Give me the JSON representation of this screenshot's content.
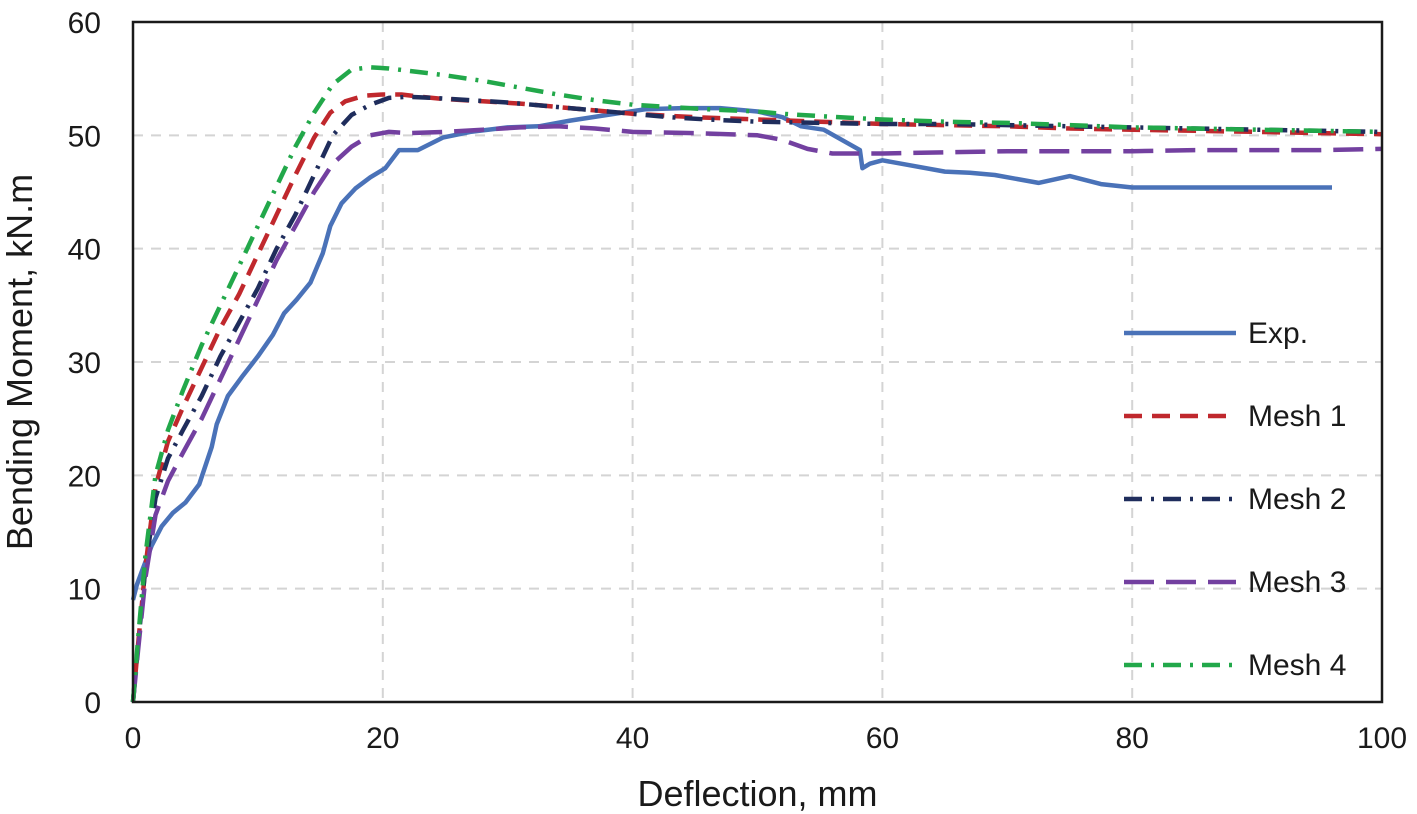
{
  "chart_data": {
    "type": "line",
    "title": "",
    "xlabel": "Deflection, mm",
    "ylabel": "Bending Moment, kN.m",
    "xlim": [
      0,
      100
    ],
    "ylim": [
      0,
      60
    ],
    "xticks": [
      0,
      20,
      40,
      60,
      80,
      100
    ],
    "yticks": [
      0,
      10,
      20,
      30,
      40,
      50,
      60
    ],
    "xtick_labels": [
      "0",
      "20",
      "40",
      "60",
      "80",
      "100"
    ],
    "ytick_labels": [
      "0",
      "10",
      "20",
      "30",
      "40",
      "50",
      "60"
    ],
    "grid": true,
    "legend_position": "right",
    "series": [
      {
        "name": "Exp.",
        "color": "#4a72b8",
        "dash": "solid",
        "x": [
          0,
          0.3,
          0.8,
          1.5,
          2.3,
          3.2,
          4.2,
          5.3,
          6.3,
          6.7,
          7.6,
          8.8,
          10,
          11.2,
          12.1,
          13.1,
          14.2,
          15.2,
          15.8,
          16.7,
          17.8,
          19,
          20.2,
          21.3,
          22.8,
          24.8,
          27,
          30,
          32.5,
          35,
          38,
          41,
          44,
          47,
          50,
          52,
          53.5,
          55.3,
          58.2,
          58.4,
          59,
          60,
          62,
          65,
          67,
          69,
          72.5,
          75,
          77.5,
          80,
          85,
          90,
          96
        ],
        "y": [
          9,
          10.3,
          11.8,
          13.8,
          15.5,
          16.7,
          17.6,
          19.2,
          22.5,
          24.5,
          27,
          28.8,
          30.5,
          32.4,
          34.3,
          35.5,
          37,
          39.6,
          42,
          44,
          45.3,
          46.3,
          47.1,
          48.7,
          48.7,
          49.8,
          50.3,
          50.7,
          50.8,
          51.3,
          51.8,
          52.3,
          52.4,
          52.4,
          52.1,
          51.6,
          50.8,
          50.5,
          48.7,
          47.1,
          47.5,
          47.8,
          47.4,
          46.8,
          46.7,
          46.5,
          45.8,
          46.4,
          45.7,
          45.4,
          45.4,
          45.4,
          45.4
        ]
      },
      {
        "name": "Mesh 1",
        "color": "#c0282d",
        "dash": "dash",
        "x": [
          0,
          0.4,
          1,
          1.8,
          2.8,
          4,
          5.5,
          7,
          8.5,
          10,
          11.5,
          13,
          14.5,
          15.8,
          17,
          18.5,
          20,
          21.5,
          23,
          25,
          28,
          31,
          34,
          37,
          40,
          45,
          50,
          55,
          60,
          65,
          70,
          75,
          80,
          85,
          90,
          95,
          100
        ],
        "y": [
          0,
          5,
          12,
          19,
          23,
          26,
          29.5,
          33,
          36,
          39.5,
          43,
          46.5,
          49.8,
          52,
          53,
          53.5,
          53.6,
          53.6,
          53.4,
          53.2,
          53,
          52.8,
          52.5,
          52.2,
          51.9,
          51.6,
          51.4,
          51.2,
          51,
          50.9,
          50.8,
          50.6,
          50.5,
          50.4,
          50.3,
          50.2,
          50.1
        ]
      },
      {
        "name": "Mesh 2",
        "color": "#1f2d5c",
        "dash": "dashdot",
        "x": [
          0,
          0.4,
          1,
          1.8,
          2.8,
          4,
          5.5,
          7,
          8.5,
          10,
          11.5,
          13,
          14.5,
          16,
          17.5,
          19,
          20.5,
          22,
          24,
          27,
          30,
          33,
          36,
          38,
          40,
          43,
          46,
          50,
          55,
          60,
          65,
          70,
          75,
          80,
          85,
          90,
          95,
          100
        ],
        "y": [
          0,
          5,
          12,
          18,
          21.5,
          24,
          27,
          30.5,
          33.5,
          36.5,
          40,
          43,
          46.5,
          50,
          51.8,
          52.7,
          53.3,
          53.4,
          53.3,
          53.1,
          52.9,
          52.6,
          52.3,
          52.1,
          51.9,
          51.6,
          51.4,
          51.2,
          51.1,
          51,
          51,
          50.9,
          50.8,
          50.7,
          50.6,
          50.5,
          50.4,
          50.3
        ]
      },
      {
        "name": "Mesh 3",
        "color": "#7340a0",
        "dash": "longdash",
        "x": [
          0,
          0.4,
          1,
          1.8,
          2.8,
          4,
          5.5,
          7,
          8.5,
          10,
          11.5,
          13,
          14.5,
          16,
          17.5,
          19,
          20.5,
          22,
          25,
          28,
          31,
          34,
          37,
          40,
          45,
          50,
          52,
          54,
          56,
          60,
          65,
          70,
          75,
          80,
          85,
          90,
          95,
          100
        ],
        "y": [
          0,
          4.5,
          11,
          16.5,
          19.5,
          22,
          25,
          28.5,
          32,
          35.5,
          39,
          42,
          45,
          47.5,
          49,
          50,
          50.3,
          50.2,
          50.3,
          50.5,
          50.7,
          50.8,
          50.6,
          50.3,
          50.2,
          50,
          49.6,
          48.8,
          48.4,
          48.4,
          48.5,
          48.6,
          48.6,
          48.6,
          48.7,
          48.7,
          48.7,
          48.8
        ]
      },
      {
        "name": "Mesh 4",
        "color": "#22a84a",
        "dash": "dashdot",
        "x": [
          0,
          0.4,
          1,
          1.8,
          2.8,
          4,
          5.5,
          7,
          8.5,
          10,
          11.5,
          13,
          14.5,
          16,
          17.5,
          19,
          20.5,
          22,
          25,
          28,
          31,
          34,
          37,
          40,
          43,
          46,
          50,
          52,
          55,
          60,
          65,
          70,
          75,
          80,
          85,
          90,
          95,
          100
        ],
        "y": [
          0,
          5.5,
          13,
          20,
          24,
          27.5,
          31.5,
          35,
          38.5,
          42,
          45.5,
          49,
          52,
          54.5,
          55.8,
          56,
          55.9,
          55.7,
          55.3,
          54.8,
          54.2,
          53.6,
          53.1,
          52.7,
          52.5,
          52.3,
          52.1,
          51.9,
          51.7,
          51.4,
          51.2,
          51.1,
          50.9,
          50.7,
          50.6,
          50.5,
          50.4,
          50.3
        ]
      }
    ]
  }
}
